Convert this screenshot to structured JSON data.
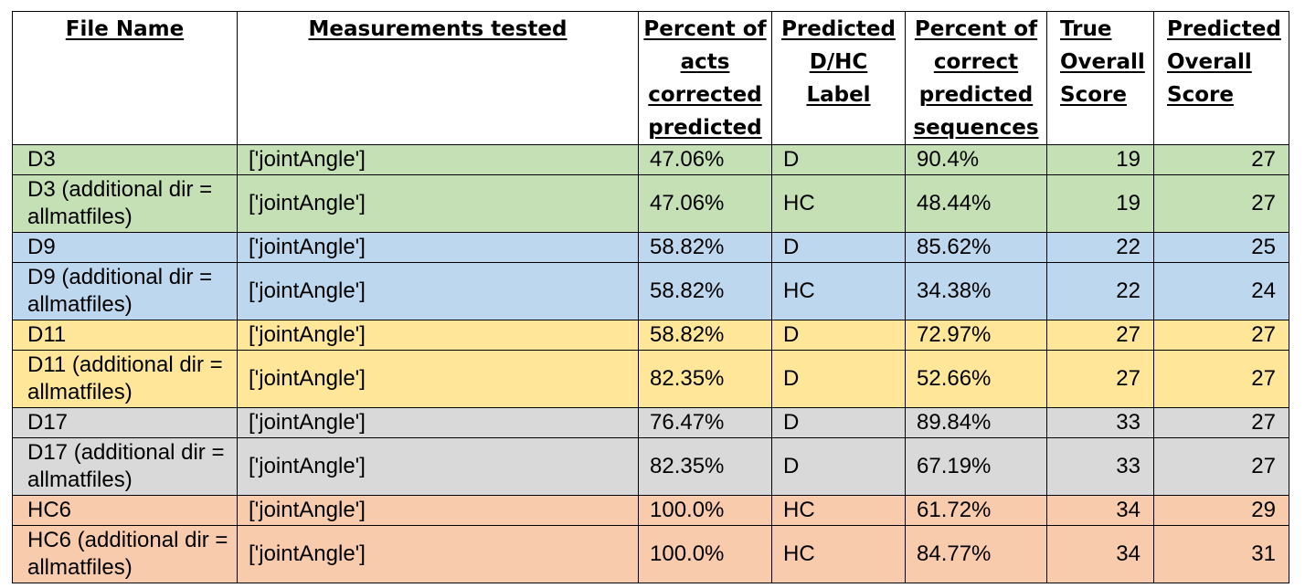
{
  "table": {
    "headers": [
      "File Name",
      "Measurements tested",
      "Percent of acts corrected predicted",
      "Predicted D/HC Label",
      "Percent of correct predicted sequences",
      "True Overall Score",
      "Predicted Overall Score"
    ],
    "row_colors": [
      "#c5e0b4",
      "#c5e0b4",
      "#bdd7ee",
      "#bdd7ee",
      "#ffe699",
      "#ffe699",
      "#d9d9d9",
      "#d9d9d9",
      "#f8cbad",
      "#f8cbad"
    ],
    "rows": [
      {
        "file": "D3",
        "measurements": "['jointAngle']",
        "acts": "47.06%",
        "label": "D",
        "sequences": "90.4%",
        "true_score": "19",
        "pred_score": "27"
      },
      {
        "file": "D3 (additional dir = allmatfiles)",
        "measurements": "['jointAngle']",
        "acts": "47.06%",
        "label": "HC",
        "sequences": "48.44%",
        "true_score": "19",
        "pred_score": "27"
      },
      {
        "file": "D9",
        "measurements": "['jointAngle']",
        "acts": "58.82%",
        "label": "D",
        "sequences": "85.62%",
        "true_score": "22",
        "pred_score": "25"
      },
      {
        "file": "D9 (additional dir = allmatfiles)",
        "measurements": "['jointAngle']",
        "acts": "58.82%",
        "label": "HC",
        "sequences": "34.38%",
        "true_score": "22",
        "pred_score": "24"
      },
      {
        "file": "D11",
        "measurements": "['jointAngle']",
        "acts": "58.82%",
        "label": "D",
        "sequences": "72.97%",
        "true_score": "27",
        "pred_score": "27"
      },
      {
        "file": "D11 (additional dir = allmatfiles)",
        "measurements": "['jointAngle']",
        "acts": "82.35%",
        "label": "D",
        "sequences": "52.66%",
        "true_score": "27",
        "pred_score": "27"
      },
      {
        "file": "D17",
        "measurements": "['jointAngle']",
        "acts": "76.47%",
        "label": "D",
        "sequences": "89.84%",
        "true_score": "33",
        "pred_score": "27"
      },
      {
        "file": "D17 (additional dir = allmatfiles)",
        "measurements": "['jointAngle']",
        "acts": "82.35%",
        "label": "D",
        "sequences": "67.19%",
        "true_score": "33",
        "pred_score": "27"
      },
      {
        "file": "HC6",
        "measurements": "['jointAngle']",
        "acts": "100.0%",
        "label": "HC",
        "sequences": "61.72%",
        "true_score": "34",
        "pred_score": "29"
      },
      {
        "file": "HC6 (additional dir = allmatfiles)",
        "measurements": "['jointAngle']",
        "acts": "100.0%",
        "label": "HC",
        "sequences": "84.77%",
        "true_score": "34",
        "pred_score": "31"
      }
    ]
  }
}
